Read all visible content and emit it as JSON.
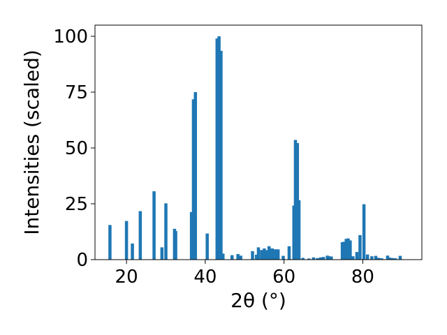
{
  "chart_data": {
    "type": "bar",
    "xlabel": "2θ (°)",
    "ylabel": "Intensities (scaled)",
    "xlim": [
      12,
      95
    ],
    "ylim": [
      0,
      105
    ],
    "xticks": [
      20,
      40,
      60,
      80
    ],
    "yticks": [
      0,
      25,
      50,
      75,
      100
    ],
    "grid": false,
    "bar_width": 0.8,
    "color": "#1f77b4",
    "x": [
      15.8,
      20.0,
      21.5,
      23.5,
      27.0,
      29.0,
      30.0,
      32.2,
      32.5,
      36.5,
      37.0,
      37.5,
      40.5,
      43.0,
      43.5,
      44.0,
      44.5,
      46.8,
      48.3,
      49.0,
      52.0,
      53.0,
      53.5,
      54.3,
      55.0,
      55.5,
      56.2,
      57.0,
      57.8,
      58.5,
      59.8,
      61.3,
      62.5,
      62.9,
      63.4,
      63.8,
      64.8,
      66.3,
      67.5,
      68.5,
      69.3,
      70.0,
      71.0,
      71.5,
      72.0,
      74.8,
      75.3,
      75.8,
      76.3,
      76.8,
      77.5,
      78.5,
      79.3,
      80.3,
      81.2,
      82.3,
      83.3,
      84.0,
      84.8,
      86.3,
      86.8,
      87.5,
      88.3,
      89.5
    ],
    "values": [
      15.5,
      17.3,
      7.2,
      21.7,
      30.6,
      5.5,
      25.2,
      13.8,
      12.8,
      21.3,
      71.8,
      75.0,
      11.7,
      99.0,
      100.0,
      93.5,
      2.7,
      2.0,
      2.5,
      1.8,
      3.8,
      2.2,
      5.5,
      4.3,
      5.0,
      4.2,
      6.0,
      5.0,
      4.6,
      4.6,
      1.7,
      6.0,
      24.2,
      53.6,
      52.2,
      26.6,
      0.8,
      0.5,
      1.0,
      0.7,
      1.0,
      1.2,
      1.8,
      1.5,
      1.4,
      7.8,
      8.0,
      9.3,
      9.5,
      8.6,
      1.5,
      3.4,
      11.0,
      24.8,
      2.3,
      1.5,
      1.7,
      0.8,
      0.6,
      1.8,
      0.9,
      0.7,
      0.6,
      1.7
    ]
  }
}
